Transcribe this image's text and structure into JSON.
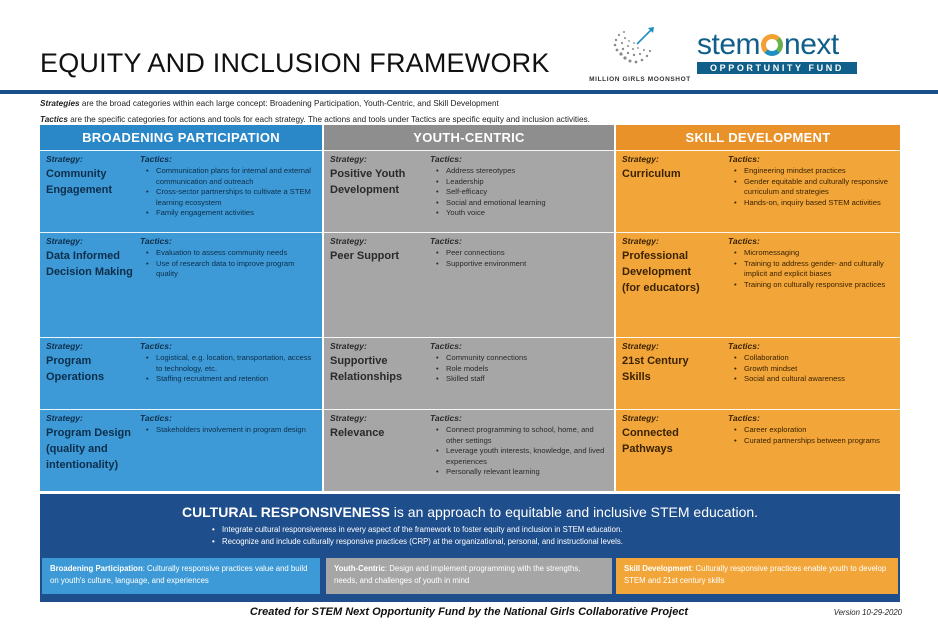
{
  "header": {
    "title": "EQUITY AND INCLUSION FRAMEWORK",
    "mgm_caption": "MILLION GIRLS MOONSHOT",
    "stem_logo_pre": "stem",
    "stem_logo_post": "next",
    "stem_logo_bar": "OPPORTUNITY FUND"
  },
  "definitions": {
    "strategies_term": "Strategies",
    "strategies_text": " are the broad categories within each large concept:  Broadening Participation, Youth-Centric, and Skill Development",
    "tactics_term": "Tactics",
    "tactics_text": " are the specific categories for actions and tools for each strategy. The actions and tools under Tactics are specific equity and inclusion activities."
  },
  "labels": {
    "strategy": "Strategy:",
    "tactics": "Tactics:"
  },
  "columns": [
    {
      "heading": "BROADENING PARTICIPATION",
      "rows": [
        {
          "name": "Community Engagement",
          "tactics": [
            "Communication plans for  internal and external communication and outreach",
            "Cross-sector partnerships to cultivate a STEM learning ecosystem",
            "Family engagement activities"
          ]
        },
        {
          "name": "Data Informed Decision Making",
          "tactics": [
            "Evaluation to assess community needs",
            "Use of research data to improve program quality"
          ]
        },
        {
          "name": "Program Operations",
          "tactics": [
            "Logistical, e.g. location, transportation, access to technology, etc.",
            "Staffing recruitment and retention"
          ]
        },
        {
          "name": "Program Design (quality and intentionality)",
          "tactics": [
            "Stakeholders involvement in program design"
          ]
        }
      ]
    },
    {
      "heading": "YOUTH-CENTRIC",
      "rows": [
        {
          "name": "Positive Youth Development",
          "tactics": [
            "Address stereotypes",
            "Leadership",
            "Self-efficacy",
            "Social and emotional learning",
            "Youth voice"
          ]
        },
        {
          "name": "Peer Support",
          "tactics": [
            "Peer connections",
            "Supportive environment"
          ]
        },
        {
          "name": "Supportive Relationships",
          "tactics": [
            "Community connections",
            "Role models",
            "Skilled staff"
          ]
        },
        {
          "name": "Relevance",
          "tactics": [
            "Connect programming to school, home, and other settings",
            "Leverage youth interests, knowledge, and lived experiences",
            "Personally relevant learning"
          ]
        }
      ]
    },
    {
      "heading": "SKILL DEVELOPMENT",
      "rows": [
        {
          "name": "Curriculum",
          "tactics": [
            "Engineering mindset practices",
            "Gender equitable and culturally responsive curriculum and strategies",
            "Hands-on, inquiry based STEM activities"
          ]
        },
        {
          "name": "Professional Development (for educators)",
          "tactics": [
            "Micromessaging",
            "Training to address gender- and culturally implicit and explicit biases",
            "Training on culturally responsive practices"
          ]
        },
        {
          "name": "21st Century Skills",
          "tactics": [
            "Collaboration",
            "Growth mindset",
            "Social and cultural awareness"
          ]
        },
        {
          "name": "Connected Pathways",
          "tactics": [
            "Career exploration",
            "Curated partnerships between programs"
          ]
        }
      ]
    }
  ],
  "crp": {
    "title_bold": "CULTURAL RESPONSIVENESS",
    "title_rest": " is an approach to equitable and inclusive STEM education.",
    "bullets": [
      "Integrate cultural responsiveness in every aspect of the framework to foster equity and inclusion in STEM education.",
      "Recognize and include culturally responsive practices (CRP) at the organizational, personal, and instructional levels."
    ],
    "boxes": [
      {
        "term": "Broadening Participation",
        "text": ":  Culturally responsive practices value and build on youth's culture, language, and experiences"
      },
      {
        "term": "Youth-Centric",
        "text": ":  Design and implement programming with the strengths, needs, and challenges of youth in mind"
      },
      {
        "term": "Skill Development",
        "text": ":  Culturally responsive practices enable youth to develop STEM and 21st century skills"
      }
    ]
  },
  "footer": {
    "credit": "Created for STEM Next Opportunity Fund by the National Girls Collaborative Project",
    "version": "Version 10-29-2020"
  },
  "colors": {
    "blue": "#3d9ad6",
    "gray": "#a6a6a6",
    "orange": "#f2a63a",
    "navy": "#1f4e8c"
  }
}
